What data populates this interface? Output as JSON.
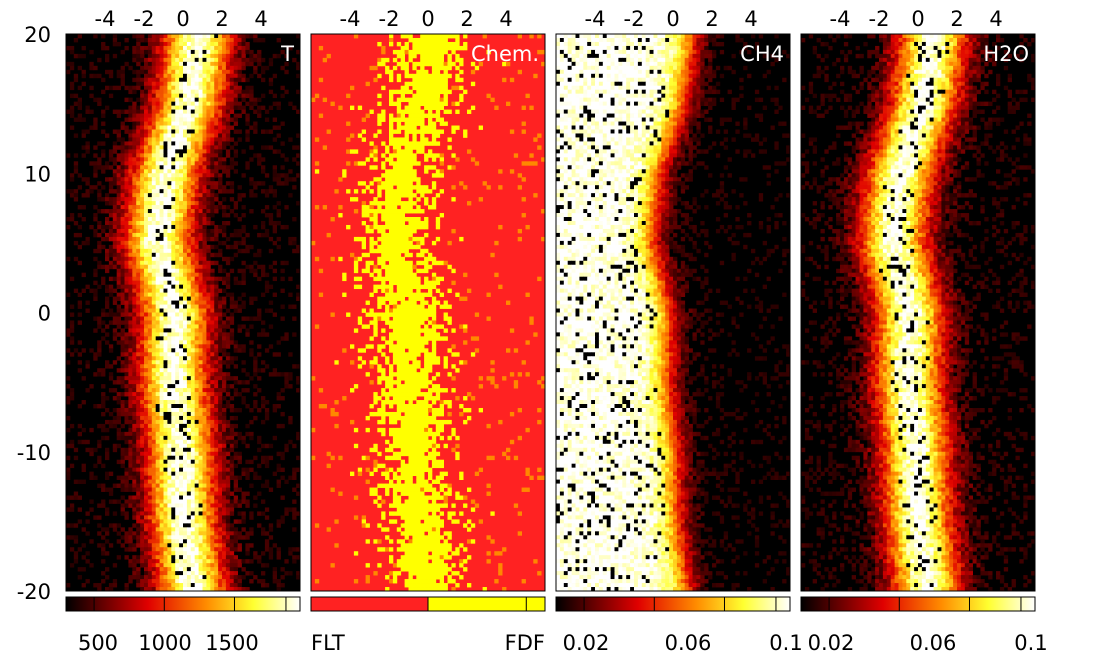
{
  "chart_data": {
    "type": "heatmap",
    "y_axis": {
      "range": [
        -20,
        20
      ],
      "ticks": [
        "20",
        "10",
        "0",
        "-10",
        "-20"
      ]
    },
    "x_axis": {
      "range": [
        -6,
        6
      ],
      "ticks": [
        "-4",
        "-2",
        "0",
        "2",
        "4"
      ],
      "position": "top"
    },
    "flame_centerline": {
      "y": [
        -20,
        -15,
        -10,
        -5,
        0,
        5,
        10,
        15,
        20
      ],
      "x": [
        0.5,
        0.0,
        -0.1,
        -0.5,
        -0.4,
        -1.3,
        -0.9,
        0.3,
        0.8
      ]
    },
    "panels": [
      {
        "label": "T",
        "field": "temperature",
        "colormap": "hot",
        "colorbar_ticks": [
          "500",
          "1000",
          "1500"
        ],
        "colorbar_fill_fraction": 1.0
      },
      {
        "label": "Chem.",
        "field": "chemistry",
        "colormap": "categorical",
        "colorbar_ticks": [
          "FLT",
          "FDF"
        ],
        "categories": [
          "FLT",
          "FDF"
        ],
        "category_colors": [
          "#ff2222",
          "#ffff00"
        ]
      },
      {
        "label": "CH4",
        "field": "ch4",
        "colormap": "hot_reversed",
        "colorbar_ticks": [
          "0.02",
          "0.06",
          "0.1"
        ]
      },
      {
        "label": "H2O",
        "field": "h2o",
        "colormap": "hot",
        "colorbar_ticks": [
          "0.02",
          "0.06",
          "0.1"
        ]
      }
    ]
  }
}
